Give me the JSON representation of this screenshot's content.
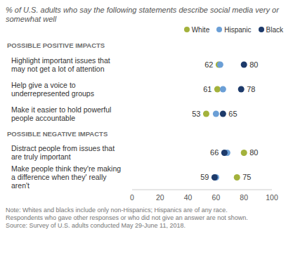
{
  "chart_data": {
    "type": "scatter",
    "orientation": "horizontal",
    "title": "% of U.S. adults who say the following statements describe social media very or somewhat well",
    "sections": [
      {
        "title": "POSSIBLE POSITIVE IMPACTS",
        "categories": [
          "Highlight important issues that may not get a lot of attention",
          "Help give a voice to underrepresented groups",
          "Make it easier to hold powerful people accountable"
        ]
      },
      {
        "title": "POSSIBLE NEGATIVE IMPACTS",
        "categories": [
          "Distract people from issues that are truly important",
          "Make people think they're making a difference when they' really aren't"
        ]
      }
    ],
    "series": [
      {
        "name": "White",
        "color": "#a3b23c",
        "values": [
          62,
          61,
          53,
          80,
          75
        ],
        "value_labels": [
          "62",
          "61",
          "53",
          "80",
          "75"
        ]
      },
      {
        "name": "Hispanic",
        "color": "#6b9fd6",
        "values": [
          63,
          65,
          60,
          68,
          60
        ],
        "value_labels": [
          null,
          null,
          null,
          null,
          null
        ]
      },
      {
        "name": "Black",
        "color": "#1d3a6a",
        "values": [
          80,
          78,
          65,
          66,
          59
        ],
        "value_labels": [
          "80",
          "78",
          "65",
          "66",
          "59"
        ]
      }
    ],
    "xlim": [
      0,
      100
    ],
    "xticks": [
      0,
      20,
      40,
      60,
      80,
      100
    ],
    "grid": false,
    "legend": "top-right",
    "data_labels": true,
    "marker": "circle",
    "notes": [
      "Note: Whites and blacks include only non-Hispanics; Hispanics are of any race.",
      "Respondents who gave other responses or who did not give an answer are not shown.",
      "Source: Survey of U.S. adults conducted May 29-June 11, 2018."
    ]
  }
}
